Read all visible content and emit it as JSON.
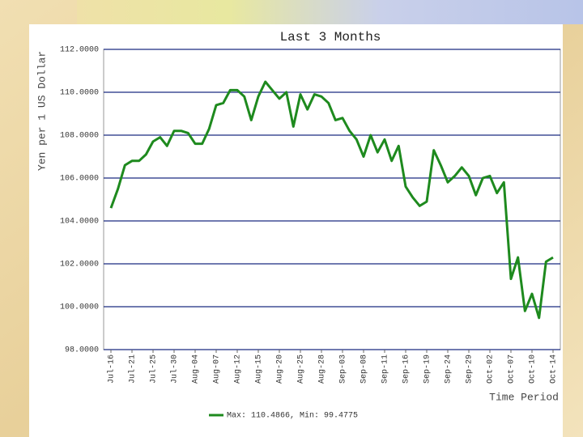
{
  "chart_data": {
    "type": "line",
    "title": "Last 3 Months",
    "y_label": "Yen per 1 US Dollar",
    "x_label": "Time Period",
    "categories": [
      "Jul-16",
      null,
      null,
      "Jul-21",
      null,
      null,
      "Jul-25",
      null,
      null,
      "Jul-30",
      null,
      null,
      "Aug-04",
      null,
      null,
      "Aug-07",
      null,
      null,
      "Aug-12",
      null,
      null,
      "Aug-15",
      null,
      null,
      "Aug-20",
      null,
      null,
      "Aug-25",
      null,
      null,
      "Aug-28",
      null,
      null,
      "Sep-03",
      null,
      null,
      "Sep-08",
      null,
      null,
      "Sep-11",
      null,
      null,
      "Sep-16",
      null,
      null,
      "Sep-19",
      null,
      null,
      "Sep-24",
      null,
      null,
      "Sep-29",
      null,
      null,
      "Oct-02",
      null,
      null,
      "Oct-07",
      null,
      null,
      "Oct-10",
      null,
      null,
      "Oct-14"
    ],
    "series": [
      {
        "name": "Max: 110.4866, Min: 99.4775",
        "color": "#1e8a1e",
        "values": [
          104.6,
          105.5,
          106.6,
          106.8,
          106.8,
          107.1,
          107.7,
          107.9,
          107.5,
          108.2,
          108.2,
          108.1,
          107.6,
          107.6,
          108.3,
          109.4,
          109.5,
          110.1,
          110.1,
          109.8,
          108.7,
          109.8,
          110.49,
          110.1,
          109.7,
          110.0,
          108.4,
          109.9,
          109.2,
          109.9,
          109.8,
          109.5,
          108.7,
          108.8,
          108.2,
          107.8,
          107.0,
          108.0,
          107.2,
          107.8,
          106.8,
          107.5,
          105.6,
          105.1,
          104.7,
          104.9,
          107.3,
          106.6,
          105.8,
          106.1,
          106.5,
          106.1,
          105.2,
          106.0,
          106.1,
          105.3,
          105.8,
          101.3,
          102.3,
          99.8,
          100.6,
          99.48,
          102.1,
          102.3
        ]
      }
    ],
    "ylim": [
      98,
      112
    ],
    "yticks": [
      {
        "value": 98,
        "label": "98.0000"
      },
      {
        "value": 100,
        "label": "100.0000"
      },
      {
        "value": 102,
        "label": "102.0000"
      },
      {
        "value": 104,
        "label": "104.0000"
      },
      {
        "value": 106,
        "label": "106.0000"
      },
      {
        "value": 108,
        "label": "108.0000"
      },
      {
        "value": 110,
        "label": "110.0000"
      },
      {
        "value": 112,
        "label": "112.0000"
      }
    ],
    "grid": true
  }
}
